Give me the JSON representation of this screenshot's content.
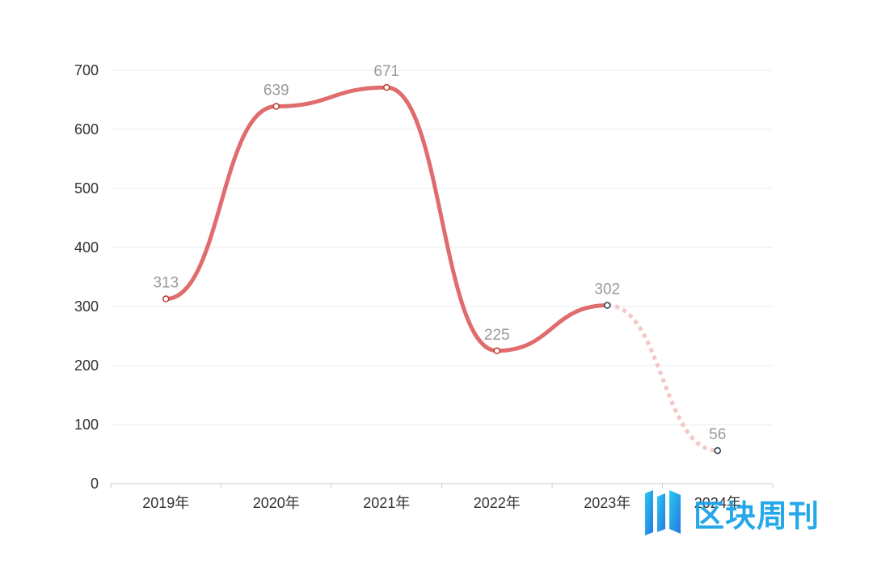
{
  "chart_data": {
    "type": "line",
    "title": "",
    "xlabel": "",
    "ylabel": "",
    "categories": [
      "2019年",
      "2020年",
      "2021年",
      "2022年",
      "2023年",
      "2024年"
    ],
    "series": [
      {
        "name": "",
        "values": [
          313,
          639,
          671,
          225,
          302,
          56
        ],
        "projected_from_index": 4
      }
    ],
    "ylim": [
      0,
      700
    ],
    "yticks": [
      0,
      100,
      200,
      300,
      400,
      500,
      600,
      700
    ],
    "grid": true,
    "colors": {
      "line": "#e06c6e",
      "projected": "#f4c6c5",
      "marker_fill": "#ffffff",
      "marker_stroke": "#c0392b",
      "projected_marker_stroke": "#1f3a4d",
      "grid": "#ebebeb",
      "axis": "#cccccc"
    }
  },
  "watermark": {
    "text": "区块周刊",
    "icon": "logo-bars-icon"
  }
}
